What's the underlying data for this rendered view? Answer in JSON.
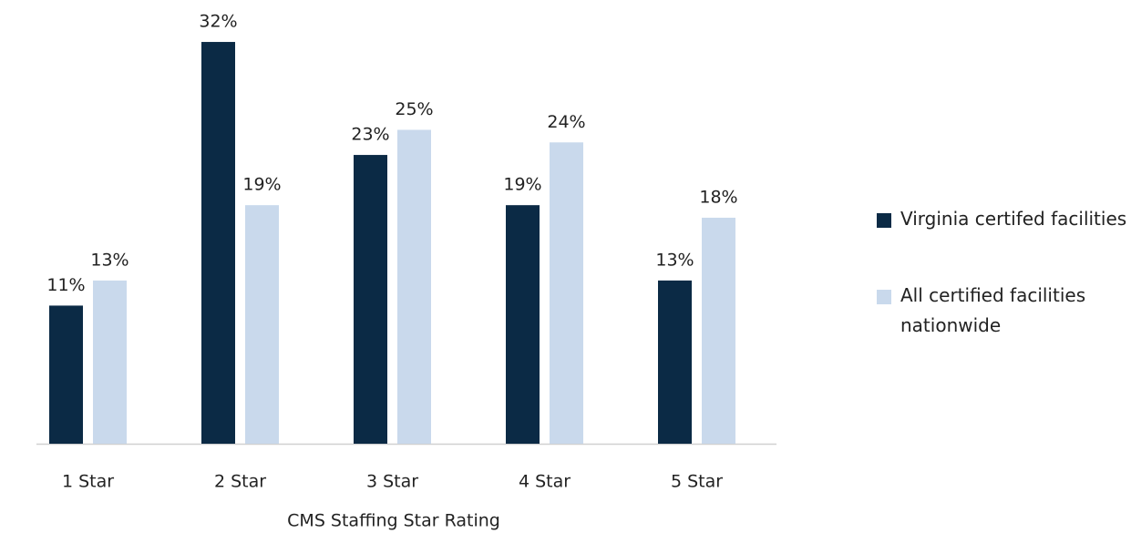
{
  "chart_data": {
    "type": "bar",
    "x_label": "CMS Staffing Star Rating",
    "categories": [
      "1 Star",
      "2 Star",
      "3 Star",
      "4 Star",
      "5 Star"
    ],
    "series": [
      {
        "name": "Virginia certifed facilities",
        "color": "#0b2a45",
        "values": [
          11,
          32,
          23,
          19,
          13
        ],
        "value_labels": [
          "11%",
          "32%",
          "23%",
          "19%",
          "13%"
        ]
      },
      {
        "name": "All certified facilities nationwide",
        "color": "#c9d9ec",
        "values": [
          13,
          19,
          25,
          24,
          18
        ],
        "value_labels": [
          "13%",
          "19%",
          "25%",
          "24%",
          "18%"
        ]
      }
    ],
    "legend": "right"
  }
}
